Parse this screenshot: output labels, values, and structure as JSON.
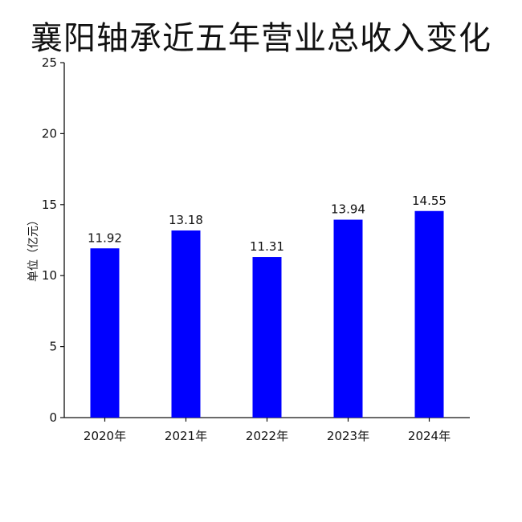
{
  "chart_data": {
    "type": "bar",
    "title": "襄阳轴承近五年营业总收入变化",
    "ylabel": "单位（亿元）",
    "xlabel": "",
    "categories": [
      "2020年",
      "2021年",
      "2022年",
      "2023年",
      "2024年"
    ],
    "values": [
      11.92,
      13.18,
      11.31,
      13.94,
      14.55
    ],
    "value_labels": [
      "11.92",
      "13.18",
      "11.31",
      "13.94",
      "14.55"
    ],
    "ylim": [
      0,
      25
    ],
    "yticks": [
      0,
      5,
      10,
      15,
      20,
      25
    ],
    "bar_color": "#0000ff",
    "grid": false,
    "legend": "none"
  }
}
